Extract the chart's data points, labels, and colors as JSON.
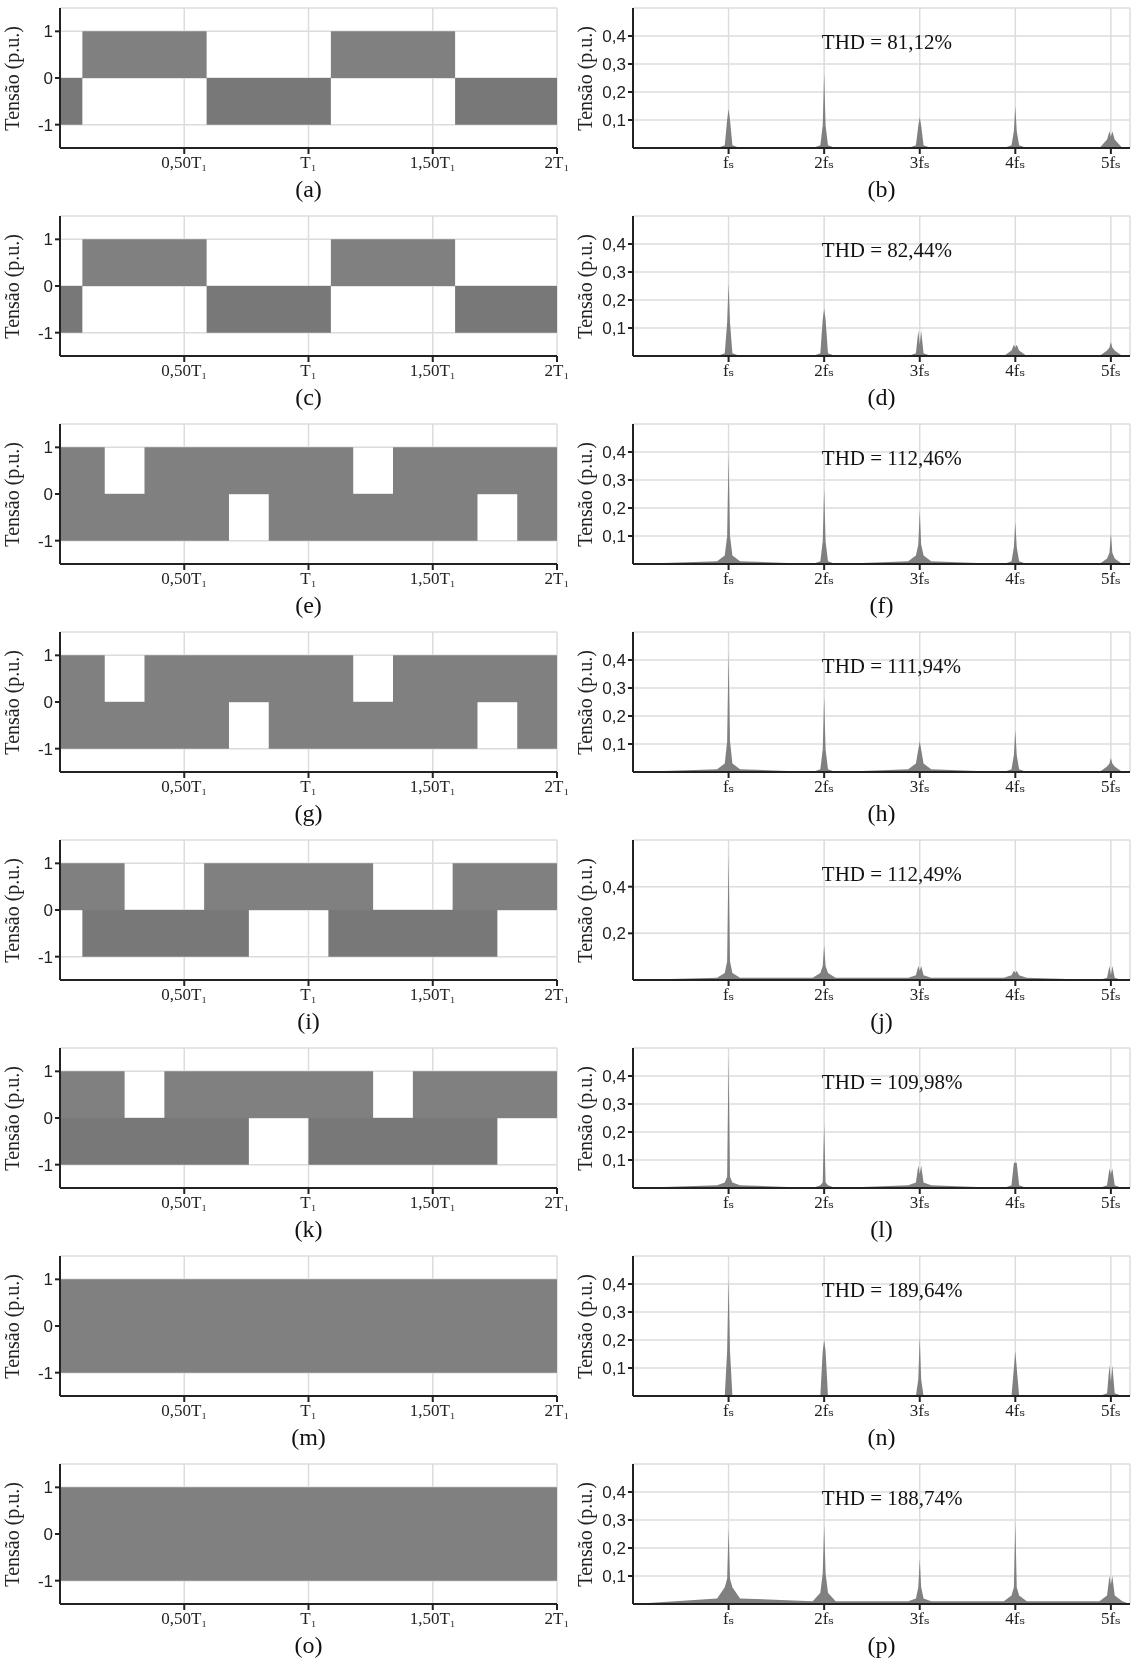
{
  "chart_data": [
    {
      "type": "area",
      "xlabel": "(a)",
      "ylabel": "Tensão (p.u.)",
      "grid": true,
      "xlim": [
        0,
        2
      ],
      "xticks": [
        {
          "value": 0.5,
          "label": "0,50T₁"
        },
        {
          "value": 1,
          "label": "T₁"
        },
        {
          "value": 1.5,
          "label": "1,50T₁"
        },
        {
          "value": 2,
          "label": "2T₁"
        }
      ],
      "ylim": [
        -1.5,
        1.5
      ],
      "yticks": [
        -1,
        0,
        1
      ],
      "x": [
        0,
        0.09,
        0.09,
        0.59,
        0.59,
        1.09,
        1.09,
        1.59,
        1.59,
        2
      ],
      "series": [
        {
          "color": "#808080",
          "values": [
            0,
            0,
            1,
            1,
            0,
            0,
            1,
            1,
            0,
            0
          ]
        },
        {
          "color": "#787878",
          "values": [
            -1,
            -1,
            0,
            0,
            -1,
            -1,
            0,
            0,
            -1,
            -1
          ]
        }
      ]
    },
    {
      "type": "area",
      "xlabel": "(b)",
      "ylabel": "Tensão (p.u.)",
      "grid": true,
      "annotations": [
        "THD = 81,12%"
      ],
      "xlim": [
        0,
        5.2
      ],
      "xticks": [
        {
          "value": 1,
          "label": "fₛ"
        },
        {
          "value": 2,
          "label": "2fₛ"
        },
        {
          "value": 3,
          "label": "3fₛ"
        },
        {
          "value": 4,
          "label": "4fₛ"
        },
        {
          "value": 5,
          "label": "5fₛ"
        }
      ],
      "ylim": [
        0,
        0.5
      ],
      "yticks": [
        {
          "value": 0.1,
          "label": "0,1"
        },
        {
          "value": 0.2,
          "label": "0,2"
        },
        {
          "value": 0.3,
          "label": "0,3"
        },
        {
          "value": 0.4,
          "label": "0,4"
        }
      ],
      "x": [
        0,
        0.88,
        0.96,
        0.985,
        1,
        1.015,
        1.04,
        1.12,
        1.88,
        1.96,
        1.985,
        2,
        2.015,
        2.04,
        2.12,
        2.88,
        2.96,
        2.985,
        3,
        3.015,
        3.04,
        3.12,
        3.88,
        3.96,
        3.985,
        4,
        4.015,
        4.04,
        4.12,
        4.88,
        4.96,
        4.985,
        5,
        5.015,
        5.04,
        5.12,
        5.2
      ],
      "series": [
        {
          "color": "#808080",
          "values": [
            0,
            0,
            0.01,
            0.1,
            0.14,
            0.1,
            0.01,
            0,
            0,
            0.01,
            0.08,
            0.27,
            0.08,
            0.01,
            0,
            0,
            0.01,
            0.08,
            0.11,
            0.08,
            0.01,
            0,
            0,
            0.01,
            0.06,
            0.15,
            0.06,
            0.01,
            0,
            0,
            0.03,
            0.06,
            0.04,
            0.06,
            0.03,
            0,
            0
          ]
        }
      ]
    },
    {
      "type": "area",
      "xlabel": "(c)",
      "ylabel": "Tensão (p.u.)",
      "grid": true,
      "xlim": [
        0,
        2
      ],
      "xticks": [
        {
          "value": 0.5,
          "label": "0,50T₁"
        },
        {
          "value": 1,
          "label": "T₁"
        },
        {
          "value": 1.5,
          "label": "1,50T₁"
        },
        {
          "value": 2,
          "label": "2T₁"
        }
      ],
      "ylim": [
        -1.5,
        1.5
      ],
      "yticks": [
        -1,
        0,
        1
      ],
      "x": [
        0,
        0.09,
        0.09,
        0.59,
        0.59,
        1.09,
        1.09,
        1.59,
        1.59,
        2
      ],
      "series": [
        {
          "color": "#808080",
          "values": [
            0,
            0,
            1,
            1,
            0,
            0,
            1,
            1,
            0,
            0
          ]
        },
        {
          "color": "#787878",
          "values": [
            -1,
            -1,
            0,
            0,
            -1,
            -1,
            0,
            0,
            -1,
            -1
          ]
        }
      ]
    },
    {
      "type": "area",
      "xlabel": "(d)",
      "ylabel": "Tensão (p.u.)",
      "grid": true,
      "annotations": [
        "THD = 82,44%"
      ],
      "xlim": [
        0,
        5.2
      ],
      "xticks": [
        {
          "value": 1,
          "label": "fₛ"
        },
        {
          "value": 2,
          "label": "2fₛ"
        },
        {
          "value": 3,
          "label": "3fₛ"
        },
        {
          "value": 4,
          "label": "4fₛ"
        },
        {
          "value": 5,
          "label": "5fₛ"
        }
      ],
      "ylim": [
        0,
        0.5
      ],
      "yticks": [
        {
          "value": 0.1,
          "label": "0,1"
        },
        {
          "value": 0.2,
          "label": "0,2"
        },
        {
          "value": 0.3,
          "label": "0,3"
        },
        {
          "value": 0.4,
          "label": "0,4"
        }
      ],
      "x": [
        0,
        0.88,
        0.96,
        0.985,
        1,
        1.015,
        1.04,
        1.12,
        1.88,
        1.96,
        1.985,
        2,
        2.015,
        2.04,
        2.12,
        2.88,
        2.96,
        2.985,
        3,
        3.015,
        3.04,
        3.12,
        3.88,
        3.96,
        3.985,
        4,
        4.015,
        4.04,
        4.12,
        4.88,
        4.96,
        4.985,
        5,
        5.015,
        5.04,
        5.12,
        5.2
      ],
      "series": [
        {
          "color": "#808080",
          "values": [
            0,
            0,
            0.01,
            0.12,
            0.26,
            0.12,
            0.01,
            0,
            0,
            0.01,
            0.13,
            0.17,
            0.13,
            0.01,
            0,
            0,
            0.01,
            0.09,
            0.04,
            0.09,
            0.01,
            0,
            0,
            0.02,
            0.04,
            0.03,
            0.04,
            0.02,
            0,
            0,
            0.02,
            0.03,
            0.05,
            0.03,
            0.02,
            0,
            0
          ]
        }
      ]
    },
    {
      "type": "area",
      "xlabel": "(e)",
      "ylabel": "Tensão (p.u.)",
      "grid": true,
      "xlim": [
        0,
        2
      ],
      "xticks": [
        {
          "value": 0.5,
          "label": "0,50T₁"
        },
        {
          "value": 1,
          "label": "T₁"
        },
        {
          "value": 1.5,
          "label": "1,50T₁"
        },
        {
          "value": 2,
          "label": "2T₁"
        }
      ],
      "ylim": [
        -1.5,
        1.5
      ],
      "yticks": [
        -1,
        0,
        1
      ],
      "x": [
        0,
        0.18,
        0.18,
        0.34,
        0.34,
        0.68,
        0.68,
        0.84,
        0.84,
        1.18,
        1.18,
        1.34,
        1.34,
        1.68,
        1.68,
        1.84,
        1.84,
        2
      ],
      "series": [
        {
          "color": "#808080",
          "values": [
            1,
            1,
            0,
            0,
            1,
            1,
            1,
            1,
            1,
            1,
            0,
            0,
            1,
            1,
            1,
            1,
            1,
            1
          ]
        },
        {
          "color": "#808080",
          "values": [
            -1,
            -1,
            -1,
            -1,
            -1,
            -1,
            0,
            0,
            -1,
            -1,
            -1,
            -1,
            -1,
            -1,
            0,
            0,
            -1,
            -1
          ]
        }
      ]
    },
    {
      "type": "area",
      "xlabel": "(f)",
      "ylabel": "Tensão (p.u.)",
      "grid": true,
      "annotations": [
        "THD = 112,46%"
      ],
      "xlim": [
        0,
        5.2
      ],
      "xticks": [
        {
          "value": 1,
          "label": "fₛ"
        },
        {
          "value": 2,
          "label": "2fₛ"
        },
        {
          "value": 3,
          "label": "3fₛ"
        },
        {
          "value": 4,
          "label": "4fₛ"
        },
        {
          "value": 5,
          "label": "5fₛ"
        }
      ],
      "ylim": [
        0,
        0.5
      ],
      "yticks": [
        {
          "value": 0.1,
          "label": "0,1"
        },
        {
          "value": 0.2,
          "label": "0,2"
        },
        {
          "value": 0.3,
          "label": "0,3"
        },
        {
          "value": 0.4,
          "label": "0,4"
        }
      ],
      "x": [
        0,
        0.88,
        0.96,
        0.985,
        1,
        1.015,
        1.04,
        1.12,
        1.88,
        1.96,
        1.985,
        2,
        2.015,
        2.04,
        2.12,
        2.88,
        2.96,
        2.985,
        3,
        3.015,
        3.04,
        3.12,
        3.88,
        3.96,
        3.985,
        4,
        4.015,
        4.04,
        4.12,
        4.88,
        4.96,
        4.985,
        5,
        5.015,
        5.04,
        5.12,
        5.2
      ],
      "series": [
        {
          "color": "#808080",
          "values": [
            0,
            0.01,
            0.03,
            0.1,
            0.39,
            0.1,
            0.03,
            0.01,
            0,
            0.01,
            0.08,
            0.27,
            0.08,
            0.01,
            0,
            0.01,
            0.03,
            0.07,
            0.19,
            0.07,
            0.03,
            0.01,
            0,
            0.01,
            0.06,
            0.15,
            0.06,
            0.01,
            0,
            0,
            0.02,
            0.04,
            0.11,
            0.04,
            0.02,
            0,
            0
          ]
        }
      ]
    },
    {
      "type": "area",
      "xlabel": "(g)",
      "ylabel": "Tensão (p.u.)",
      "grid": true,
      "xlim": [
        0,
        2
      ],
      "xticks": [
        {
          "value": 0.5,
          "label": "0,50T₁"
        },
        {
          "value": 1,
          "label": "T₁"
        },
        {
          "value": 1.5,
          "label": "1,50T₁"
        },
        {
          "value": 2,
          "label": "2T₁"
        }
      ],
      "ylim": [
        -1.5,
        1.5
      ],
      "yticks": [
        -1,
        0,
        1
      ],
      "x": [
        0,
        0.18,
        0.18,
        0.34,
        0.34,
        0.68,
        0.68,
        0.84,
        0.84,
        1.18,
        1.18,
        1.34,
        1.34,
        1.68,
        1.68,
        1.84,
        1.84,
        2
      ],
      "series": [
        {
          "color": "#808080",
          "values": [
            1,
            1,
            0,
            0,
            1,
            1,
            1,
            1,
            1,
            1,
            0,
            0,
            1,
            1,
            1,
            1,
            1,
            1
          ]
        },
        {
          "color": "#808080",
          "values": [
            -1,
            -1,
            -1,
            -1,
            -1,
            -1,
            0,
            0,
            -1,
            -1,
            -1,
            -1,
            -1,
            -1,
            0,
            0,
            -1,
            -1
          ]
        }
      ]
    },
    {
      "type": "area",
      "xlabel": "(h)",
      "ylabel": "Tensão (p.u.)",
      "grid": true,
      "annotations": [
        "THD = 111,94%"
      ],
      "xlim": [
        0,
        5.2
      ],
      "xticks": [
        {
          "value": 1,
          "label": "fₛ"
        },
        {
          "value": 2,
          "label": "2fₛ"
        },
        {
          "value": 3,
          "label": "3fₛ"
        },
        {
          "value": 4,
          "label": "4fₛ"
        },
        {
          "value": 5,
          "label": "5fₛ"
        }
      ],
      "ylim": [
        0,
        0.5
      ],
      "yticks": [
        {
          "value": 0.1,
          "label": "0,1"
        },
        {
          "value": 0.2,
          "label": "0,2"
        },
        {
          "value": 0.3,
          "label": "0,3"
        },
        {
          "value": 0.4,
          "label": "0,4"
        }
      ],
      "x": [
        0,
        0.88,
        0.96,
        0.985,
        1,
        1.015,
        1.04,
        1.12,
        1.88,
        1.96,
        1.985,
        2,
        2.015,
        2.04,
        2.12,
        2.88,
        2.96,
        2.985,
        3,
        3.015,
        3.04,
        3.12,
        3.88,
        3.96,
        3.985,
        4,
        4.015,
        4.04,
        4.12,
        4.88,
        4.96,
        4.985,
        5,
        5.015,
        5.04,
        5.12,
        5.2
      ],
      "series": [
        {
          "color": "#808080",
          "values": [
            0,
            0.01,
            0.03,
            0.11,
            0.43,
            0.11,
            0.03,
            0.01,
            0,
            0.01,
            0.08,
            0.27,
            0.08,
            0.01,
            0,
            0.01,
            0.03,
            0.08,
            0.11,
            0.08,
            0.03,
            0.01,
            0,
            0.01,
            0.06,
            0.15,
            0.06,
            0.01,
            0,
            0,
            0.02,
            0.03,
            0.05,
            0.03,
            0.02,
            0,
            0
          ]
        }
      ]
    },
    {
      "type": "area",
      "xlabel": "(i)",
      "ylabel": "Tensão (p.u.)",
      "grid": true,
      "xlim": [
        0,
        2
      ],
      "xticks": [
        {
          "value": 0.5,
          "label": "0,50T₁"
        },
        {
          "value": 1,
          "label": "T₁"
        },
        {
          "value": 1.5,
          "label": "1,50T₁"
        },
        {
          "value": 2,
          "label": "2T₁"
        }
      ],
      "ylim": [
        -1.5,
        1.5
      ],
      "yticks": [
        -1,
        0,
        1
      ],
      "x": [
        0,
        0.09,
        0.09,
        0.26,
        0.26,
        0.58,
        0.58,
        0.76,
        0.76,
        1.08,
        1.08,
        1.26,
        1.26,
        1.58,
        1.58,
        1.76,
        1.76,
        2
      ],
      "series": [
        {
          "color": "#808080",
          "values": [
            1,
            1,
            1,
            1,
            0,
            0,
            1,
            1,
            1,
            1,
            1,
            1,
            0,
            0,
            1,
            1,
            1,
            1
          ]
        },
        {
          "color": "#787878",
          "values": [
            0,
            0,
            -1,
            -1,
            -1,
            -1,
            -1,
            -1,
            0,
            0,
            -1,
            -1,
            -1,
            -1,
            -1,
            -1,
            0,
            0
          ]
        }
      ]
    },
    {
      "type": "area",
      "xlabel": "(j)",
      "ylabel": "Tensão (p.u.)",
      "grid": true,
      "annotations": [
        "THD = 112,49%"
      ],
      "xlim": [
        0,
        5.2
      ],
      "xticks": [
        {
          "value": 1,
          "label": "fₛ"
        },
        {
          "value": 2,
          "label": "2fₛ"
        },
        {
          "value": 3,
          "label": "3fₛ"
        },
        {
          "value": 4,
          "label": "4fₛ"
        },
        {
          "value": 5,
          "label": "5fₛ"
        }
      ],
      "ylim": [
        0,
        0.6
      ],
      "yticks": [
        {
          "value": 0.2,
          "label": "0,2"
        },
        {
          "value": 0.4,
          "label": "0,4"
        }
      ],
      "x": [
        0,
        0.88,
        0.96,
        0.985,
        1,
        1.015,
        1.04,
        1.12,
        1.88,
        1.96,
        1.985,
        2,
        2.015,
        2.04,
        2.12,
        2.88,
        2.96,
        2.985,
        3,
        3.015,
        3.04,
        3.12,
        3.88,
        3.96,
        3.985,
        4,
        4.015,
        4.04,
        4.12,
        4.88,
        4.96,
        4.985,
        5,
        5.015,
        5.04,
        5.12,
        5.2
      ],
      "series": [
        {
          "color": "#808080",
          "values": [
            0,
            0.01,
            0.03,
            0.08,
            0.54,
            0.08,
            0.03,
            0.01,
            0.01,
            0.03,
            0.06,
            0.15,
            0.06,
            0.03,
            0.01,
            0.01,
            0.02,
            0.06,
            0.04,
            0.06,
            0.02,
            0.01,
            0.01,
            0.02,
            0.04,
            0.03,
            0.04,
            0.02,
            0.01,
            0,
            0.01,
            0.06,
            0.02,
            0.06,
            0.01,
            0,
            0
          ]
        }
      ]
    },
    {
      "type": "area",
      "xlabel": "(k)",
      "ylabel": "Tensão (p.u.)",
      "grid": true,
      "xlim": [
        0,
        2
      ],
      "xticks": [
        {
          "value": 0.5,
          "label": "0,50T₁"
        },
        {
          "value": 1,
          "label": "T₁"
        },
        {
          "value": 1.5,
          "label": "1,50T₁"
        },
        {
          "value": 2,
          "label": "2T₁"
        }
      ],
      "ylim": [
        -1.5,
        1.5
      ],
      "yticks": [
        -1,
        0,
        1
      ],
      "x": [
        0,
        0.26,
        0.26,
        0.42,
        0.42,
        0.76,
        0.76,
        1,
        1,
        1.26,
        1.26,
        1.42,
        1.42,
        1.76,
        1.76,
        2
      ],
      "series": [
        {
          "color": "#808080",
          "values": [
            1,
            1,
            0,
            0,
            1,
            1,
            1,
            1,
            1,
            1,
            0,
            0,
            1,
            1,
            1,
            1
          ]
        },
        {
          "color": "#787878",
          "values": [
            -1,
            -1,
            -1,
            -1,
            -1,
            -1,
            0,
            0,
            -1,
            -1,
            -1,
            -1,
            -1,
            -1,
            0,
            0
          ]
        }
      ]
    },
    {
      "type": "area",
      "xlabel": "(l)",
      "ylabel": "Tensão (p.u.)",
      "grid": true,
      "annotations": [
        "THD = 109,98%"
      ],
      "xlim": [
        0,
        5.2
      ],
      "xticks": [
        {
          "value": 1,
          "label": "fₛ"
        },
        {
          "value": 2,
          "label": "2fₛ"
        },
        {
          "value": 3,
          "label": "3fₛ"
        },
        {
          "value": 4,
          "label": "4fₛ"
        },
        {
          "value": 5,
          "label": "5fₛ"
        }
      ],
      "ylim": [
        0,
        0.5
      ],
      "yticks": [
        {
          "value": 0.1,
          "label": "0,1"
        },
        {
          "value": 0.2,
          "label": "0,2"
        },
        {
          "value": 0.3,
          "label": "0,3"
        },
        {
          "value": 0.4,
          "label": "0,4"
        }
      ],
      "x": [
        0,
        0.88,
        0.96,
        0.985,
        1,
        1.015,
        1.04,
        1.12,
        1.88,
        1.96,
        1.985,
        2,
        2.015,
        2.04,
        2.12,
        2.88,
        2.96,
        2.985,
        3,
        3.015,
        3.04,
        3.12,
        3.88,
        3.96,
        3.985,
        4,
        4.015,
        4.04,
        4.12,
        4.88,
        4.96,
        4.985,
        5,
        5.015,
        5.04,
        5.12,
        5.2
      ],
      "series": [
        {
          "color": "#808080",
          "values": [
            0,
            0.01,
            0.02,
            0.04,
            0.47,
            0.04,
            0.02,
            0.01,
            0,
            0.01,
            0.02,
            0.23,
            0.02,
            0.01,
            0,
            0.01,
            0.02,
            0.08,
            0.05,
            0.08,
            0.02,
            0.01,
            0,
            0.01,
            0.09,
            0.09,
            0.09,
            0.01,
            0,
            0,
            0.01,
            0.07,
            0.05,
            0.07,
            0.01,
            0,
            0
          ]
        }
      ]
    },
    {
      "type": "area",
      "xlabel": "(m)",
      "ylabel": "Tensão (p.u.)",
      "grid": true,
      "xlim": [
        0,
        2
      ],
      "xticks": [
        {
          "value": 0.5,
          "label": "0,50T₁"
        },
        {
          "value": 1,
          "label": "T₁"
        },
        {
          "value": 1.5,
          "label": "1,50T₁"
        },
        {
          "value": 2,
          "label": "2T₁"
        }
      ],
      "ylim": [
        -1.5,
        1.5
      ],
      "yticks": [
        -1,
        0,
        1
      ],
      "x": [
        0,
        2
      ],
      "series": [
        {
          "color": "#808080",
          "values": [
            1,
            1
          ]
        },
        {
          "color": "#808080",
          "values": [
            -1,
            -1
          ]
        }
      ]
    },
    {
      "type": "area",
      "xlabel": "(n)",
      "ylabel": "Tensão (p.u.)",
      "grid": true,
      "annotations": [
        "THD = 189,64%"
      ],
      "xlim": [
        0,
        5.2
      ],
      "xticks": [
        {
          "value": 1,
          "label": "fₛ"
        },
        {
          "value": 2,
          "label": "2fₛ"
        },
        {
          "value": 3,
          "label": "3fₛ"
        },
        {
          "value": 4,
          "label": "4fₛ"
        },
        {
          "value": 5,
          "label": "5fₛ"
        }
      ],
      "ylim": [
        0,
        0.5
      ],
      "yticks": [
        {
          "value": 0.1,
          "label": "0,1"
        },
        {
          "value": 0.2,
          "label": "0,2"
        },
        {
          "value": 0.3,
          "label": "0,3"
        },
        {
          "value": 0.4,
          "label": "0,4"
        }
      ],
      "x": [
        0,
        0.88,
        0.96,
        0.985,
        1,
        1.015,
        1.04,
        1.12,
        1.88,
        1.96,
        1.985,
        2,
        2.015,
        2.04,
        2.12,
        2.88,
        2.96,
        2.985,
        3,
        3.015,
        3.04,
        3.12,
        3.88,
        3.96,
        3.985,
        4,
        4.015,
        4.04,
        4.12,
        4.88,
        4.96,
        4.985,
        5,
        5.015,
        5.04,
        5.12,
        5.2
      ],
      "series": [
        {
          "color": "#808080",
          "values": [
            0,
            0,
            0,
            0.16,
            0.42,
            0.16,
            0,
            0,
            0,
            0,
            0.16,
            0.2,
            0.16,
            0,
            0,
            0,
            0,
            0.06,
            0.21,
            0.06,
            0,
            0,
            0,
            0,
            0.1,
            0.16,
            0.1,
            0,
            0,
            0,
            0.01,
            0.11,
            0.05,
            0.11,
            0.01,
            0,
            0
          ]
        }
      ]
    },
    {
      "type": "area",
      "xlabel": "(o)",
      "ylabel": "Tensão (p.u.)",
      "grid": true,
      "xlim": [
        0,
        2
      ],
      "xticks": [
        {
          "value": 0.5,
          "label": "0,50T₁"
        },
        {
          "value": 1,
          "label": "T₁"
        },
        {
          "value": 1.5,
          "label": "1,50T₁"
        },
        {
          "value": 2,
          "label": "2T₁"
        }
      ],
      "ylim": [
        -1.5,
        1.5
      ],
      "yticks": [
        -1,
        0,
        1
      ],
      "x": [
        0,
        2
      ],
      "series": [
        {
          "color": "#808080",
          "values": [
            1,
            1
          ]
        },
        {
          "color": "#808080",
          "values": [
            -1,
            -1
          ]
        }
      ]
    },
    {
      "type": "area",
      "xlabel": "(p)",
      "ylabel": "Tensão (p.u.)",
      "grid": true,
      "annotations": [
        "THD = 188,74%"
      ],
      "xlim": [
        0,
        5.2
      ],
      "xticks": [
        {
          "value": 1,
          "label": "fₛ"
        },
        {
          "value": 2,
          "label": "2fₛ"
        },
        {
          "value": 3,
          "label": "3fₛ"
        },
        {
          "value": 4,
          "label": "4fₛ"
        },
        {
          "value": 5,
          "label": "5fₛ"
        }
      ],
      "ylim": [
        0,
        0.5
      ],
      "yticks": [
        {
          "value": 0.1,
          "label": "0,1"
        },
        {
          "value": 0.2,
          "label": "0,2"
        },
        {
          "value": 0.3,
          "label": "0,3"
        },
        {
          "value": 0.4,
          "label": "0,4"
        }
      ],
      "x": [
        0,
        0.88,
        0.96,
        0.985,
        1,
        1.015,
        1.04,
        1.12,
        1.88,
        1.96,
        1.985,
        2,
        2.015,
        2.04,
        2.12,
        2.88,
        2.96,
        2.985,
        3,
        3.015,
        3.04,
        3.12,
        3.88,
        3.96,
        3.985,
        4,
        4.015,
        4.04,
        4.12,
        4.88,
        4.96,
        4.985,
        5,
        5.015,
        5.04,
        5.12,
        5.2
      ],
      "series": [
        {
          "color": "#808080",
          "values": [
            0,
            0.02,
            0.06,
            0.09,
            0.27,
            0.09,
            0.06,
            0.02,
            0.01,
            0.04,
            0.11,
            0.28,
            0.11,
            0.04,
            0.01,
            0.01,
            0.02,
            0.06,
            0.16,
            0.06,
            0.02,
            0.01,
            0.01,
            0.03,
            0.06,
            0.29,
            0.06,
            0.03,
            0.01,
            0.01,
            0.03,
            0.1,
            0.07,
            0.1,
            0.03,
            0.01,
            0
          ]
        }
      ]
    }
  ]
}
